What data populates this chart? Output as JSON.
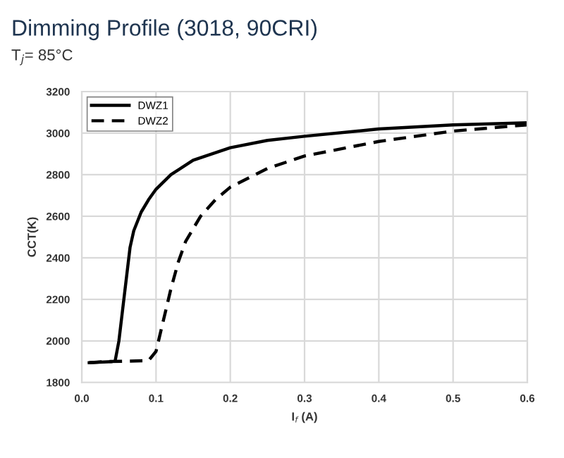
{
  "chart_data": {
    "type": "line",
    "title": "Dimming Profile (3018, 90CRI)",
    "subtitle": "T$_{j}$= 85°C",
    "xlabel": "I$_{f}$ (A)",
    "ylabel": "CCT(K)",
    "xlim": [
      0,
      0.6
    ],
    "xticks": [
      {
        "value": 0,
        "label": "0.0"
      },
      {
        "value": 0.1,
        "label": "0.1"
      },
      {
        "value": 0.2,
        "label": "0.2"
      },
      {
        "value": 0.3,
        "label": "0.3"
      },
      {
        "value": 0.4,
        "label": "0.4"
      },
      {
        "value": 0.5,
        "label": "0.5"
      },
      {
        "value": 0.6,
        "label": "0.6"
      }
    ],
    "ylim": [
      1800,
      3200
    ],
    "yticks": [
      1800,
      2000,
      2200,
      2400,
      2600,
      2800,
      3000,
      3200
    ],
    "grid": true,
    "legend": "top left",
    "series": [
      {
        "name": "DWZ1",
        "color": "#000000",
        "line_style": "solid",
        "x": [
          0.01,
          0.04,
          0.045,
          0.05,
          0.055,
          0.06,
          0.065,
          0.07,
          0.08,
          0.09,
          0.1,
          0.12,
          0.15,
          0.2,
          0.25,
          0.3,
          0.4,
          0.5,
          0.6
        ],
        "values": [
          1895,
          1900,
          1905,
          2000,
          2150,
          2300,
          2450,
          2530,
          2620,
          2680,
          2730,
          2800,
          2870,
          2930,
          2965,
          2985,
          3020,
          3040,
          3050
        ]
      },
      {
        "name": "DWZ2",
        "color": "#000000",
        "line_style": "dashed",
        "x": [
          0.01,
          0.03,
          0.09,
          0.1,
          0.11,
          0.12,
          0.13,
          0.14,
          0.16,
          0.18,
          0.2,
          0.25,
          0.3,
          0.4,
          0.5,
          0.6
        ],
        "values": [
          1895,
          1900,
          1905,
          1950,
          2100,
          2250,
          2380,
          2480,
          2600,
          2680,
          2740,
          2830,
          2890,
          2960,
          3010,
          3040
        ]
      }
    ]
  }
}
